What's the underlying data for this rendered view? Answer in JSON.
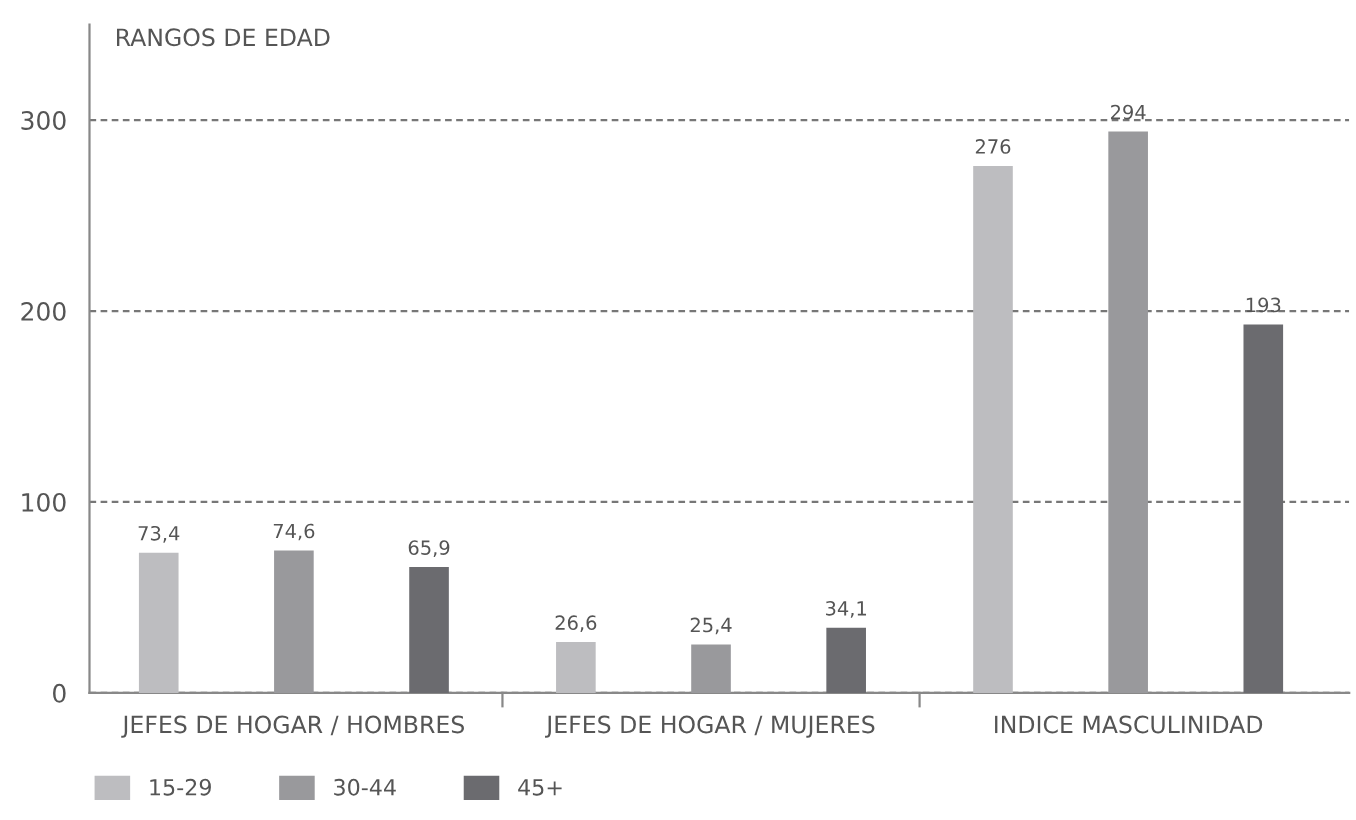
{
  "chart_data": {
    "type": "bar",
    "title": "RANGOS DE EDAD",
    "categories": [
      "JEFES DE HOGAR / HOMBRES",
      "JEFES DE HOGAR / MUJERES",
      "INDICE MASCULINIDAD"
    ],
    "series": [
      {
        "name": "15-29",
        "color": "#bdbdc0",
        "values": [
          73.4,
          26.6,
          276
        ],
        "value_labels": [
          "73,4",
          "26,6",
          "276"
        ]
      },
      {
        "name": "30-44",
        "color": "#99999c",
        "values": [
          74.6,
          25.4,
          294
        ],
        "value_labels": [
          "74,6",
          "25,4",
          "294"
        ]
      },
      {
        "name": "45+",
        "color": "#6b6b6f",
        "values": [
          65.9,
          34.1,
          193
        ],
        "value_labels": [
          "65,9",
          "34,1",
          "193"
        ]
      }
    ],
    "ylim": [
      0,
      350
    ],
    "yticks": [
      0,
      100,
      200,
      300
    ],
    "grid": "y",
    "line_style": "dashed",
    "legend": "bottom left"
  }
}
